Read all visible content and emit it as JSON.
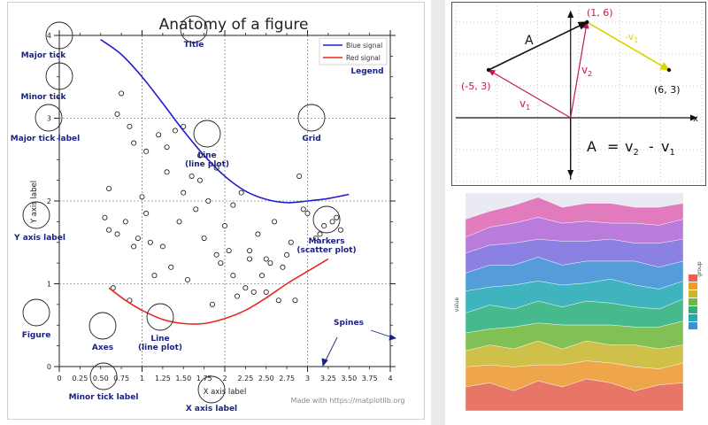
{
  "anatomy": {
    "title": "Anatomy of a figure",
    "xlabel": "X axis label",
    "ylabel": "Y axis label",
    "credit": "Made with https://matplotlib.org",
    "legend": [
      "Blue signal",
      "Red signal"
    ],
    "colors": {
      "blue": "#1f1fcc",
      "red": "#e8281e",
      "annotation": "#1a237e"
    },
    "annotations": {
      "major_tick": "Major tick",
      "minor_tick": "Minor tick",
      "major_tick_label": "Major tick label",
      "y_axis_label": "Y axis label",
      "figure": "Figure",
      "axes": "Axes",
      "line_a": "Line",
      "line_a_sub": "(line plot)",
      "line_b": "Line",
      "line_b_sub": "(line plot)",
      "title": "Title",
      "legend": "Legend",
      "grid": "Grid",
      "markers": "Markers",
      "markers_sub": "(scatter plot)",
      "spines": "Spines",
      "minor_tick_label": "Minor tick label",
      "x_axis_label": "X axis label"
    }
  },
  "vector": {
    "labels": {
      "a": "A",
      "v1": "v",
      "v1_sub": "1",
      "v2": "v",
      "v2_sub": "2",
      "neg_v1": "-v",
      "neg_v1_sub": "1",
      "p1": "(-5, 3)",
      "p2": "(1, 6)",
      "p3": "(6, 3)",
      "x": "x",
      "eq_lhs": "A",
      "eq_eq": "=",
      "eq_v2": "v",
      "eq_v2_sub": "2",
      "eq_minus": "-",
      "eq_v1": "v",
      "eq_v1_sub": "1"
    }
  },
  "stack": {
    "ylabel": "value",
    "legend_title": "group"
  },
  "chart_data": [
    {
      "type": "line",
      "title": "Anatomy of a figure",
      "xlabel": "X axis label",
      "ylabel": "Y axis label",
      "xlim": [
        0,
        4
      ],
      "ylim": [
        0,
        4
      ],
      "x_ticks": [
        0,
        1,
        2,
        3,
        4
      ],
      "x_minor_ticks": [
        0.25,
        0.5,
        0.75,
        1.25,
        1.5,
        1.75,
        2.25,
        2.5,
        2.75,
        3.25,
        3.5,
        3.75
      ],
      "x_minor_labels": [
        "0.25",
        "0.50",
        "0.75",
        "1.25",
        "1.50",
        "1.75",
        "2.25",
        "2.50",
        "2.75",
        "3.25",
        "3.50",
        "3.75"
      ],
      "y_ticks": [
        0,
        1,
        2,
        3,
        4
      ],
      "grid": true,
      "legend_position": "top-right",
      "series": [
        {
          "name": "Blue signal",
          "x": [
            0.5,
            0.75,
            1.0,
            1.25,
            1.5,
            1.75,
            2.0,
            2.25,
            2.5,
            2.75,
            3.0,
            3.25,
            3.5
          ],
          "y": [
            3.95,
            3.77,
            3.5,
            3.18,
            2.85,
            2.55,
            2.3,
            2.12,
            2.02,
            1.98,
            2.0,
            2.03,
            2.08
          ]
        },
        {
          "name": "Red signal",
          "x": [
            0.6,
            0.8,
            1.0,
            1.25,
            1.5,
            1.75,
            2.0,
            2.25,
            2.5,
            2.75,
            3.0,
            3.25
          ],
          "y": [
            0.95,
            0.8,
            0.68,
            0.57,
            0.52,
            0.52,
            0.58,
            0.68,
            0.83,
            1.0,
            1.15,
            1.3
          ]
        },
        {
          "name": "",
          "type": "scatter",
          "x": [
            0.75,
            0.7,
            0.85,
            0.9,
            0.6,
            0.55,
            0.7,
            0.8,
            0.95,
            1.0,
            1.05,
            1.1,
            1.2,
            1.3,
            1.4,
            1.5,
            1.6,
            1.7,
            1.8,
            1.9,
            2.0,
            2.1,
            2.2,
            2.3,
            2.4,
            2.5,
            2.6,
            2.7,
            2.8,
            2.9,
            3.0,
            3.1,
            3.2,
            3.3,
            3.4,
            0.6,
            0.9,
            1.15,
            1.35,
            1.55,
            1.75,
            1.95,
            2.15,
            2.35,
            2.55,
            2.75,
            2.95,
            3.15,
            3.35,
            0.65,
            0.85,
            1.25,
            1.45,
            1.65,
            1.85,
            2.05,
            2.25,
            2.45,
            2.65,
            2.85,
            1.05,
            1.3,
            1.5,
            1.7,
            1.9,
            2.1,
            2.3,
            2.5
          ],
          "y": [
            3.3,
            3.05,
            2.9,
            2.7,
            2.15,
            1.8,
            1.6,
            1.75,
            1.55,
            2.05,
            1.85,
            1.5,
            2.8,
            2.65,
            2.85,
            2.9,
            2.3,
            2.55,
            2.0,
            2.4,
            1.7,
            1.95,
            2.1,
            1.4,
            1.6,
            1.3,
            1.75,
            1.2,
            1.5,
            2.3,
            1.85,
            1.55,
            1.7,
            1.75,
            1.65,
            1.65,
            1.45,
            1.1,
            1.2,
            1.05,
            1.55,
            1.25,
            0.85,
            0.9,
            1.25,
            1.35,
            1.9,
            1.6,
            1.8,
            0.95,
            0.8,
            1.45,
            1.75,
            1.9,
            0.75,
            1.4,
            0.95,
            1.1,
            0.8,
            0.8,
            2.6,
            2.35,
            2.1,
            2.25,
            1.35,
            1.1,
            1.3,
            0.9
          ]
        }
      ]
    },
    {
      "type": "line",
      "xlim": [
        -7,
        8
      ],
      "ylim": [
        -4,
        7
      ],
      "grid": true,
      "series": [
        {
          "name": "v1",
          "x": [
            0,
            -5
          ],
          "y": [
            0,
            3
          ]
        },
        {
          "name": "v2",
          "x": [
            0,
            1
          ],
          "y": [
            0,
            6
          ]
        },
        {
          "name": "A",
          "x": [
            -5,
            1
          ],
          "y": [
            3,
            6
          ]
        },
        {
          "name": "-v1",
          "x": [
            1,
            6
          ],
          "y": [
            6,
            3
          ]
        }
      ]
    },
    {
      "type": "area",
      "stacked": true,
      "x": [
        0,
        1,
        2,
        3,
        4,
        5,
        6,
        7,
        8,
        9
      ],
      "series": [
        {
          "color": "#e8624f",
          "values": [
            12,
            14,
            10,
            15,
            12,
            16,
            14,
            10,
            13,
            14
          ]
        },
        {
          "color": "#f09a2e",
          "values": [
            10,
            9,
            12,
            8,
            11,
            9,
            10,
            12,
            8,
            10
          ]
        },
        {
          "color": "#c9b92a",
          "values": [
            8,
            10,
            9,
            12,
            8,
            10,
            9,
            11,
            10,
            9
          ]
        },
        {
          "color": "#6fb83a",
          "values": [
            9,
            8,
            11,
            9,
            12,
            8,
            10,
            9,
            11,
            12
          ]
        },
        {
          "color": "#29b27a",
          "values": [
            10,
            12,
            9,
            11,
            9,
            12,
            11,
            10,
            9,
            11
          ]
        },
        {
          "color": "#22aab5",
          "values": [
            11,
            9,
            12,
            10,
            11,
            9,
            12,
            11,
            10,
            9
          ]
        },
        {
          "color": "#3a8fd6",
          "values": [
            9,
            11,
            10,
            12,
            10,
            11,
            9,
            12,
            11,
            10
          ]
        },
        {
          "color": "#7a6fe0",
          "values": [
            10,
            10,
            11,
            9,
            12,
            10,
            11,
            9,
            12,
            11
          ]
        },
        {
          "color": "#b268d8",
          "values": [
            8,
            9,
            10,
            11,
            9,
            10,
            8,
            10,
            9,
            10
          ]
        },
        {
          "color": "#e066b5",
          "values": [
            9,
            8,
            9,
            10,
            8,
            9,
            10,
            8,
            9,
            8
          ]
        }
      ]
    }
  ]
}
